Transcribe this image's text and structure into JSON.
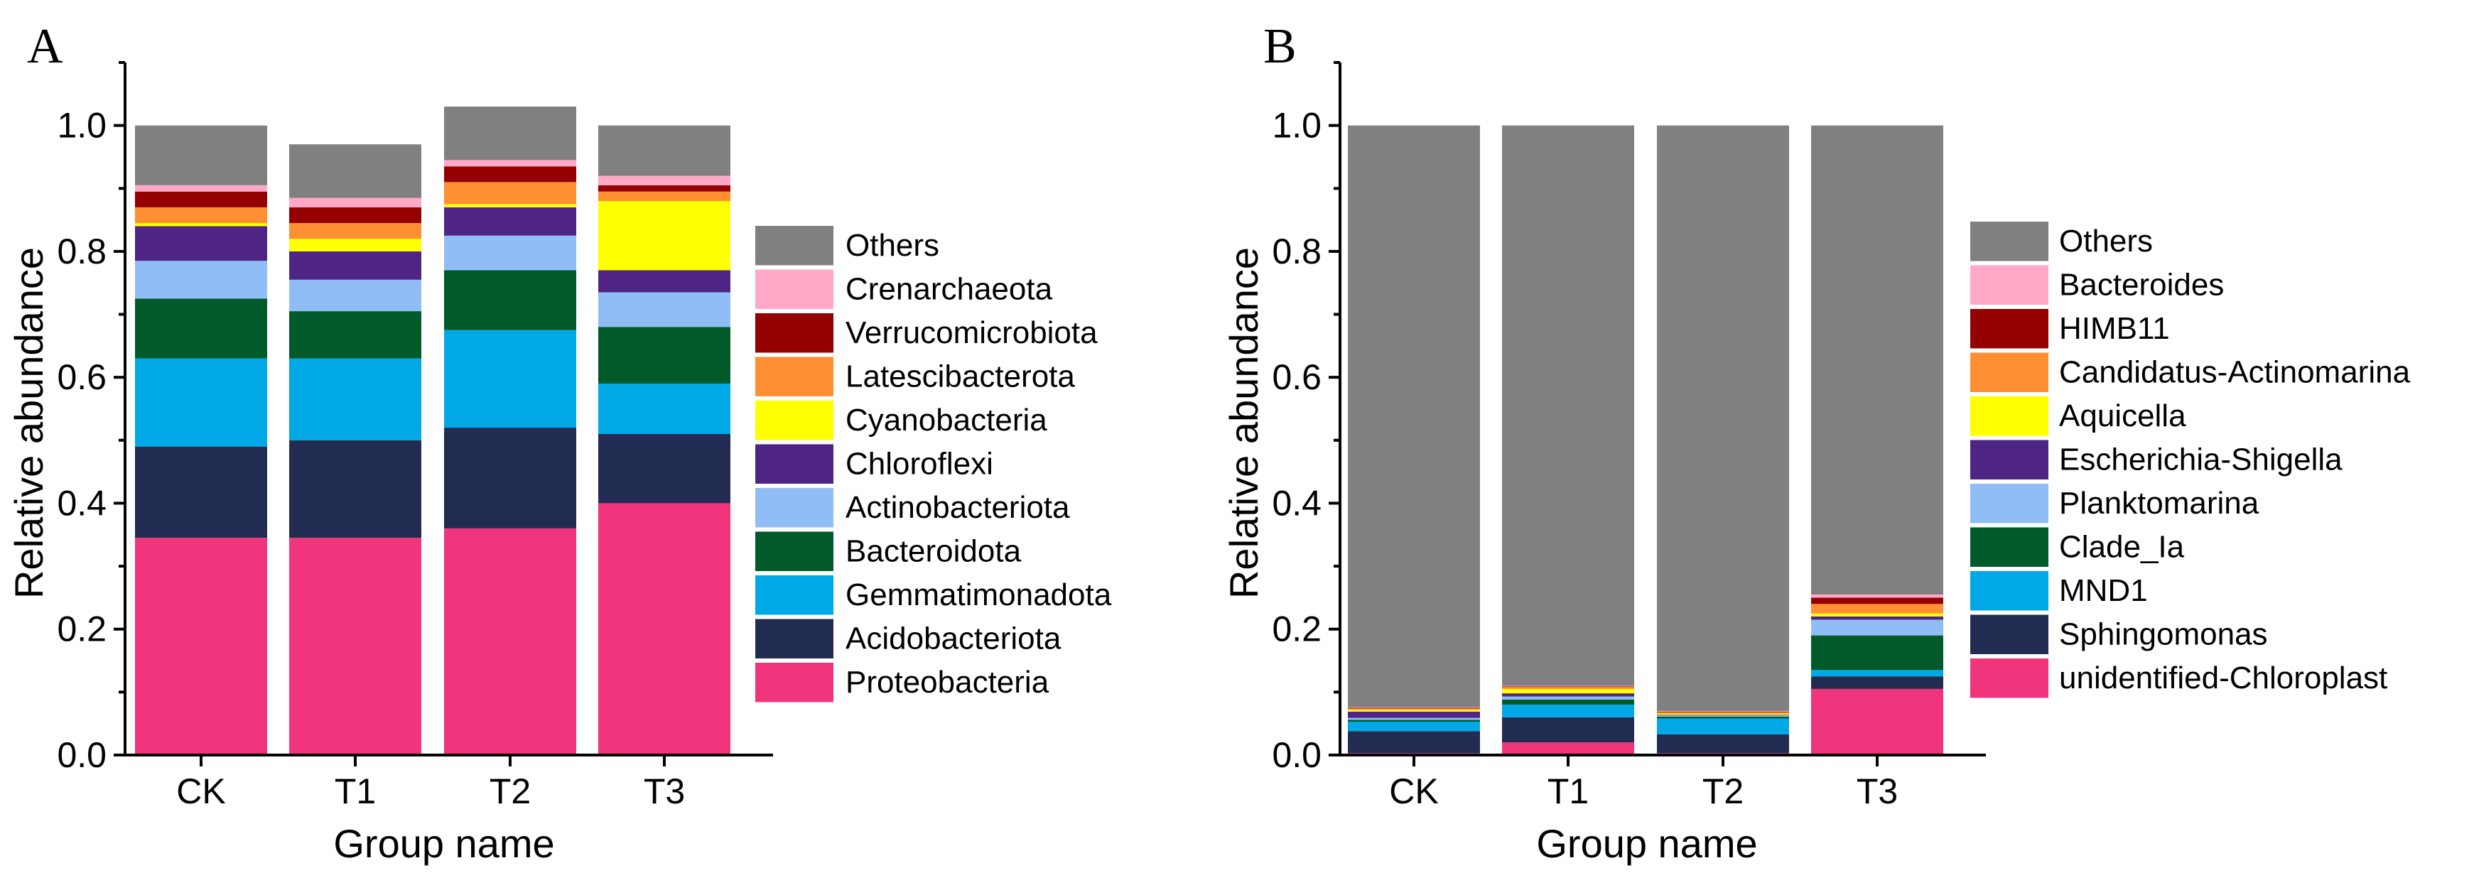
{
  "chart_data": [
    {
      "type": "bar",
      "stacked": true,
      "panel_label": "A",
      "xlabel": "Group name",
      "ylabel": "Relative abundance",
      "ylim": [
        0,
        1.1
      ],
      "yticks": [
        "0.0",
        "0.2",
        "0.4",
        "0.6",
        "0.8",
        "1.0"
      ],
      "categories": [
        "CK",
        "T1",
        "T2",
        "T3"
      ],
      "legend_position": "right",
      "series": [
        {
          "name": "Proteobacteria",
          "color": "#F0357D",
          "values": [
            0.345,
            0.345,
            0.36,
            0.4
          ]
        },
        {
          "name": "Acidobacteriota",
          "color": "#222C52",
          "values": [
            0.145,
            0.155,
            0.16,
            0.11
          ]
        },
        {
          "name": "Gemmatimonadota",
          "color": "#00A9E6",
          "values": [
            0.14,
            0.13,
            0.155,
            0.08
          ]
        },
        {
          "name": "Bacteroidota",
          "color": "#005A2A",
          "values": [
            0.095,
            0.075,
            0.095,
            0.09
          ]
        },
        {
          "name": "Actinobacteriota",
          "color": "#90BDF5",
          "values": [
            0.06,
            0.05,
            0.055,
            0.055
          ]
        },
        {
          "name": "Chloroflexi",
          "color": "#4E2584",
          "values": [
            0.055,
            0.045,
            0.045,
            0.035
          ]
        },
        {
          "name": "Cyanobacteria",
          "color": "#FFFF00",
          "values": [
            0.005,
            0.02,
            0.005,
            0.11
          ]
        },
        {
          "name": "Latescibacterota",
          "color": "#FF8F33",
          "values": [
            0.025,
            0.025,
            0.035,
            0.015
          ]
        },
        {
          "name": "Verrucomicrobiota",
          "color": "#950000",
          "values": [
            0.025,
            0.025,
            0.025,
            0.01
          ]
        },
        {
          "name": "Crenarchaeota",
          "color": "#FFA8C8",
          "values": [
            0.01,
            0.015,
            0.01,
            0.015
          ]
        },
        {
          "name": "Others",
          "color": "#808080",
          "values": [
            0.095,
            0.085,
            0.085,
            0.08
          ]
        }
      ]
    },
    {
      "type": "bar",
      "stacked": true,
      "panel_label": "B",
      "xlabel": "Group name",
      "ylabel": "Relative abundance",
      "ylim": [
        0,
        1.1
      ],
      "yticks": [
        "0.0",
        "0.2",
        "0.4",
        "0.6",
        "0.8",
        "1.0"
      ],
      "categories": [
        "CK",
        "T1",
        "T2",
        "T3"
      ],
      "legend_position": "right",
      "series": [
        {
          "name": "unidentified-Chloroplast",
          "color": "#F0357D",
          "values": [
            0.003,
            0.02,
            0.003,
            0.105
          ]
        },
        {
          "name": "Sphingomonas",
          "color": "#222C52",
          "values": [
            0.035,
            0.04,
            0.03,
            0.02
          ]
        },
        {
          "name": "MND1",
          "color": "#00A9E6",
          "values": [
            0.015,
            0.02,
            0.025,
            0.01
          ]
        },
        {
          "name": "Clade_Ia",
          "color": "#005A2A",
          "values": [
            0.003,
            0.008,
            0.003,
            0.055
          ]
        },
        {
          "name": "Planktomarina",
          "color": "#90BDF5",
          "values": [
            0.003,
            0.005,
            0.002,
            0.025
          ]
        },
        {
          "name": "Escherichia-Shigella",
          "color": "#4E2584",
          "values": [
            0.01,
            0.005,
            0.001,
            0.005
          ]
        },
        {
          "name": "Aquicella",
          "color": "#FFFF00",
          "values": [
            0.003,
            0.007,
            0.002,
            0.005
          ]
        },
        {
          "name": "Candidatus-Actinomarina",
          "color": "#FF8F33",
          "values": [
            0.002,
            0.003,
            0.002,
            0.015
          ]
        },
        {
          "name": "HIMB11",
          "color": "#950000",
          "values": [
            0.001,
            0.001,
            0.001,
            0.01
          ]
        },
        {
          "name": "Bacteroides",
          "color": "#FFA8C8",
          "values": [
            0.001,
            0.001,
            0.001,
            0.005
          ]
        },
        {
          "name": "Others",
          "color": "#808080",
          "values": [
            0.924,
            0.89,
            0.93,
            0.745
          ]
        }
      ]
    }
  ]
}
